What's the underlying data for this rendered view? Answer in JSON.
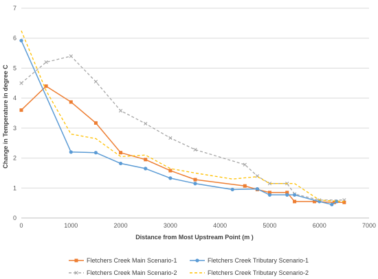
{
  "chart_data": {
    "type": "line",
    "title": "",
    "xlabel": "Distance from Most Upstream Point (m )",
    "ylabel": "Change in Temperature in degree C",
    "xlim": [
      0,
      7000
    ],
    "ylim": [
      0,
      7
    ],
    "xticks": [
      "0",
      "1000",
      "2000",
      "3000",
      "4000",
      "5000",
      "6000",
      "7000"
    ],
    "yticks": [
      "0",
      "1",
      "2",
      "3",
      "4",
      "5",
      "6",
      "7"
    ],
    "grid": "horizontal",
    "legend_position": "bottom",
    "series": [
      {
        "name": "Fletchers Creek Main Scenario-1",
        "color": "#ED7D31",
        "style": "solid",
        "marker": "square",
        "points": [
          [
            0,
            3.6
          ],
          [
            500,
            4.4
          ],
          [
            1000,
            3.87
          ],
          [
            1500,
            3.17
          ],
          [
            2000,
            2.18
          ],
          [
            2500,
            1.95
          ],
          [
            3000,
            1.58
          ],
          [
            3500,
            1.28
          ],
          [
            4500,
            1.07
          ],
          [
            4750,
            0.95
          ],
          [
            5000,
            0.85
          ],
          [
            5350,
            0.85
          ],
          [
            5500,
            0.55
          ],
          [
            5900,
            0.55
          ],
          [
            6300,
            0.52
          ],
          [
            6500,
            0.52
          ]
        ]
      },
      {
        "name": "Fletchers Creek Tributary Scenario-1",
        "color": "#5B9BD5",
        "style": "solid",
        "marker": "circle",
        "points": [
          [
            0,
            5.92
          ],
          [
            1000,
            2.2
          ],
          [
            1500,
            2.18
          ],
          [
            2000,
            1.82
          ],
          [
            2500,
            1.65
          ],
          [
            3000,
            1.33
          ],
          [
            3500,
            1.15
          ],
          [
            4250,
            0.95
          ],
          [
            4750,
            0.97
          ],
          [
            5000,
            0.77
          ],
          [
            5350,
            0.77
          ],
          [
            5500,
            0.77
          ],
          [
            6000,
            0.55
          ],
          [
            6250,
            0.45
          ],
          [
            6350,
            0.55
          ]
        ]
      },
      {
        "name": "Fletchers Creek Main Scenario-2",
        "color": "#A5A5A5",
        "style": "dashed",
        "marker": "x",
        "points": [
          [
            0,
            4.5
          ],
          [
            500,
            5.2
          ],
          [
            1000,
            5.4
          ],
          [
            1500,
            4.55
          ],
          [
            2000,
            3.58
          ],
          [
            2500,
            3.15
          ],
          [
            3000,
            2.67
          ],
          [
            3500,
            2.28
          ],
          [
            4500,
            1.78
          ],
          [
            4750,
            1.4
          ],
          [
            5000,
            1.15
          ],
          [
            5350,
            1.15
          ],
          [
            5500,
            0.8
          ],
          [
            6000,
            0.6
          ],
          [
            6500,
            0.6
          ]
        ]
      },
      {
        "name": "Fletchers Creek Tributary Scenario-2",
        "color": "#FFC000",
        "style": "dashed",
        "marker": "none",
        "points": [
          [
            0,
            6.25
          ],
          [
            500,
            4.25
          ],
          [
            1000,
            2.8
          ],
          [
            1500,
            2.65
          ],
          [
            2000,
            2.05
          ],
          [
            2500,
            2.1
          ],
          [
            3000,
            1.65
          ],
          [
            3500,
            1.5
          ],
          [
            4250,
            1.3
          ],
          [
            4750,
            1.38
          ],
          [
            5000,
            1.15
          ],
          [
            5500,
            1.15
          ],
          [
            6000,
            0.6
          ],
          [
            6500,
            0.55
          ]
        ]
      }
    ]
  }
}
